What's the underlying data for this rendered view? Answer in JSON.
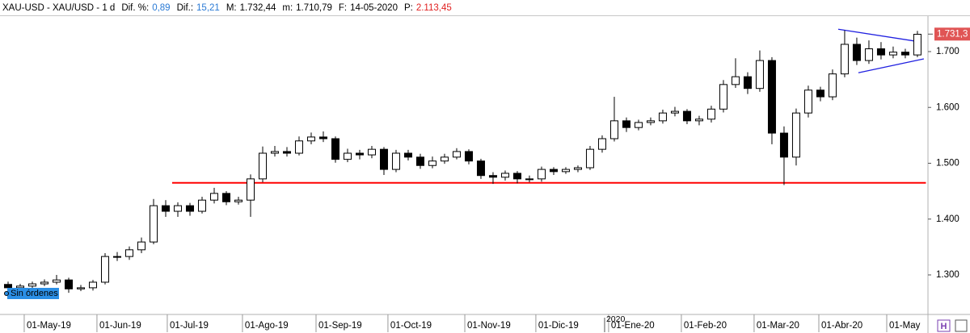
{
  "header": {
    "symbol": "XAU-USD - XAU/USD - 1 d",
    "items": [
      {
        "label": "Dif. %:",
        "value": "0,89",
        "color": "#2a7ad5"
      },
      {
        "label": "Dif.:",
        "value": "15,21",
        "color": "#2a7ad5"
      },
      {
        "label": "M:",
        "value": "1.732,44",
        "color": "#000000"
      },
      {
        "label": "m:",
        "value": "1.710,79",
        "color": "#000000"
      },
      {
        "label": "F:",
        "value": "14-05-2020",
        "color": "#000000"
      },
      {
        "label": "P:",
        "value": "2.113,45",
        "color": "#e02020"
      }
    ]
  },
  "chart_data": {
    "type": "candlestick",
    "categories": [
      null,
      null,
      null,
      null,
      null,
      null,
      null,
      null,
      null,
      null,
      null,
      null,
      null,
      null,
      null,
      null,
      null,
      null,
      null,
      null,
      null,
      null,
      null,
      null,
      null,
      null,
      null,
      null,
      null,
      null,
      null,
      null,
      null,
      null,
      null,
      null,
      null,
      null,
      null,
      null,
      null,
      null,
      null,
      null,
      null,
      null,
      null,
      null,
      null,
      null,
      null,
      null,
      null,
      null,
      null,
      null,
      null,
      null,
      null,
      null,
      null,
      null,
      null,
      null,
      null,
      null,
      null,
      null,
      null,
      null,
      null,
      null,
      null,
      null,
      null,
      null
    ],
    "open": [
      1283,
      1277,
      1280,
      1284,
      1287,
      1291,
      1275,
      1277,
      1287,
      1333,
      1333,
      1345,
      1359,
      1424,
      1414,
      1424,
      1414,
      1434,
      1446,
      1431,
      1434,
      1472,
      1518,
      1521,
      1518,
      1540,
      1547,
      1544,
      1507,
      1518,
      1515,
      1525,
      1489,
      1518,
      1511,
      1496,
      1504,
      1511,
      1521,
      1504,
      1478,
      1475,
      1482,
      1472,
      1472,
      1489,
      1485,
      1489,
      1492,
      1525,
      1544,
      1576,
      1564,
      1573,
      1576,
      1590,
      1593,
      1576,
      1579,
      1597,
      1641,
      1655,
      1634,
      1684,
      1554,
      1511,
      1590,
      1631,
      1619,
      1660,
      1713,
      1684,
      1705,
      1694,
      1699,
      1694
    ],
    "high": [
      1288,
      1284,
      1288,
      1292,
      1300,
      1295,
      1282,
      1291,
      1339,
      1341,
      1351,
      1367,
      1436,
      1434,
      1430,
      1429,
      1440,
      1456,
      1450,
      1440,
      1480,
      1530,
      1531,
      1529,
      1548,
      1555,
      1557,
      1548,
      1526,
      1524,
      1531,
      1529,
      1524,
      1524,
      1517,
      1512,
      1517,
      1527,
      1525,
      1508,
      1484,
      1487,
      1486,
      1478,
      1494,
      1493,
      1493,
      1496,
      1531,
      1550,
      1619,
      1582,
      1578,
      1582,
      1596,
      1601,
      1597,
      1585,
      1603,
      1649,
      1688,
      1663,
      1702,
      1690,
      1566,
      1598,
      1639,
      1637,
      1668,
      1738,
      1725,
      1720,
      1717,
      1709,
      1705,
      1737
    ],
    "low": [
      1271,
      1272,
      1276,
      1280,
      1283,
      1268,
      1271,
      1272,
      1283,
      1325,
      1327,
      1339,
      1355,
      1404,
      1404,
      1406,
      1410,
      1428,
      1425,
      1426,
      1404,
      1466,
      1512,
      1512,
      1514,
      1534,
      1538,
      1501,
      1502,
      1507,
      1509,
      1479,
      1484,
      1505,
      1490,
      1491,
      1499,
      1507,
      1498,
      1472,
      1463,
      1469,
      1464,
      1466,
      1467,
      1479,
      1481,
      1484,
      1488,
      1519,
      1539,
      1556,
      1559,
      1568,
      1571,
      1584,
      1570,
      1568,
      1573,
      1591,
      1635,
      1624,
      1628,
      1534,
      1461,
      1496,
      1582,
      1611,
      1613,
      1654,
      1676,
      1678,
      1686,
      1688,
      1688,
      1690
    ],
    "close": [
      1277,
      1280,
      1284,
      1287,
      1291,
      1275,
      1277,
      1287,
      1333,
      1333,
      1345,
      1359,
      1424,
      1414,
      1424,
      1414,
      1434,
      1446,
      1431,
      1434,
      1472,
      1518,
      1521,
      1518,
      1540,
      1547,
      1544,
      1507,
      1518,
      1515,
      1525,
      1489,
      1518,
      1511,
      1496,
      1504,
      1511,
      1521,
      1504,
      1478,
      1475,
      1482,
      1472,
      1472,
      1489,
      1485,
      1489,
      1492,
      1525,
      1544,
      1576,
      1564,
      1573,
      1576,
      1590,
      1593,
      1576,
      1579,
      1597,
      1641,
      1655,
      1634,
      1684,
      1554,
      1511,
      1590,
      1631,
      1619,
      1660,
      1713,
      1684,
      1705,
      1694,
      1699,
      1694,
      1731
    ],
    "xlim": [
      -0.5,
      75.87
    ],
    "xticks": [
      {
        "value": 1.33,
        "label": "01-May-19"
      },
      {
        "value": 7.33,
        "label": "01-Jun-19"
      },
      {
        "value": 13.13,
        "label": "01-Jul-19"
      },
      {
        "value": 19.33,
        "label": "01-Ago-19"
      },
      {
        "value": 25.4,
        "label": "01-Sep-19"
      },
      {
        "value": 31.33,
        "label": "01-Oct-19"
      },
      {
        "value": 37.67,
        "label": "01-Nov-19"
      },
      {
        "value": 43.53,
        "label": "01-Dic-19"
      },
      {
        "value": 49.53,
        "label": "01-Ene-20"
      },
      {
        "value": 55.53,
        "label": "01-Feb-20"
      },
      {
        "value": 61.53,
        "label": "01-Mar-20"
      },
      {
        "value": 66.87,
        "label": "01-Abr-20"
      },
      {
        "value": 72.47,
        "label": "01-May"
      }
    ],
    "year_marker": {
      "value": 49.2,
      "label": "2020"
    },
    "ylim": [
      1229.2,
      1763.5
    ],
    "yticks": [
      {
        "value": 1300,
        "label": "1.300"
      },
      {
        "value": 1400,
        "label": "1.400"
      },
      {
        "value": 1500,
        "label": "1.500"
      },
      {
        "value": 1600,
        "label": "1.600"
      },
      {
        "value": 1700,
        "label": "1.700"
      }
    ],
    "last_price": {
      "value": 1731.3,
      "label": "1.731,3",
      "color": "#e05555"
    },
    "up_color": "#ffffff",
    "down_color": "#000000",
    "grid": false,
    "hline": {
      "value": 1465,
      "x": [
        13.53,
        75.7
      ],
      "color": "#ff0000"
    },
    "trendlines": [
      {
        "x": [
          68.47,
          75.33
        ],
        "y": [
          1740,
          1717
        ],
        "color": "#2020e0"
      },
      {
        "x": [
          70.13,
          75.53
        ],
        "y": [
          1662,
          1687
        ],
        "color": "#2020e0"
      }
    ],
    "order_label": "Sin órdenes"
  }
}
